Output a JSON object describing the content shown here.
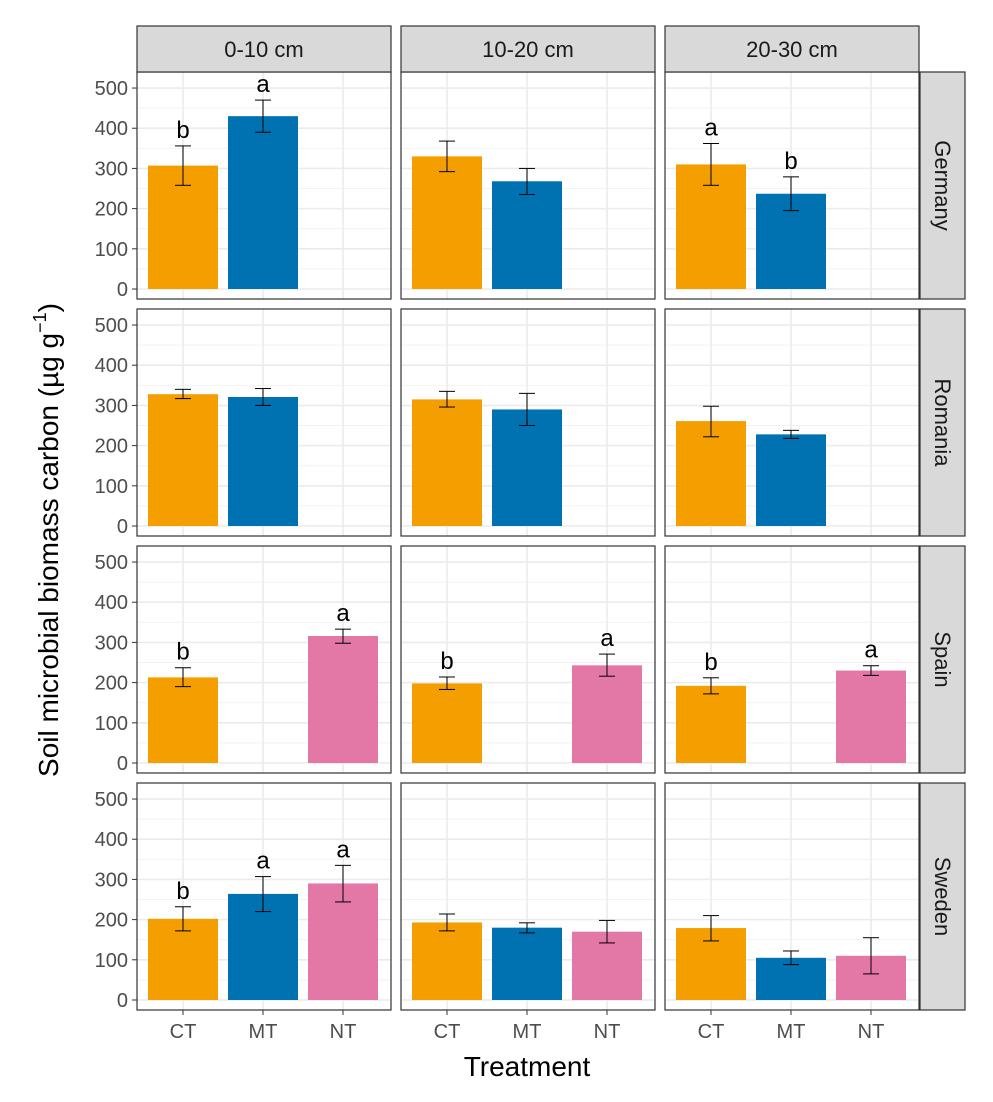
{
  "chart_data": {
    "type": "bar",
    "xlabel": "Treatment",
    "ylabel": "Soil microbial biomass carbon (µg g",
    "ylabel_sup": "−1",
    "ylabel_close": ")",
    "ylim": [
      0,
      520
    ],
    "yticks": [
      0,
      100,
      200,
      300,
      400,
      500
    ],
    "categories": [
      "CT",
      "MT",
      "NT"
    ],
    "colors": {
      "CT": "#f59e00",
      "MT": "#0072b2",
      "NT": "#e377a6"
    },
    "depths": [
      "0-10 cm",
      "10-20 cm",
      "20-30 cm"
    ],
    "countries": [
      "Germany",
      "Romania",
      "Spain",
      "Sweden"
    ],
    "panels": [
      {
        "country": "Germany",
        "depth": "0-10 cm",
        "bars": [
          {
            "treatment": "CT",
            "value": 307,
            "lo": 258,
            "hi": 356,
            "label": "b"
          },
          {
            "treatment": "MT",
            "value": 430,
            "lo": 390,
            "hi": 470,
            "label": "a"
          }
        ]
      },
      {
        "country": "Germany",
        "depth": "10-20 cm",
        "bars": [
          {
            "treatment": "CT",
            "value": 330,
            "lo": 292,
            "hi": 368
          },
          {
            "treatment": "MT",
            "value": 268,
            "lo": 235,
            "hi": 300
          }
        ]
      },
      {
        "country": "Germany",
        "depth": "20-30 cm",
        "bars": [
          {
            "treatment": "CT",
            "value": 310,
            "lo": 258,
            "hi": 362,
            "label": "a"
          },
          {
            "treatment": "MT",
            "value": 237,
            "lo": 195,
            "hi": 279,
            "label": "b"
          }
        ]
      },
      {
        "country": "Romania",
        "depth": "0-10 cm",
        "bars": [
          {
            "treatment": "CT",
            "value": 328,
            "lo": 317,
            "hi": 340
          },
          {
            "treatment": "MT",
            "value": 321,
            "lo": 300,
            "hi": 342
          }
        ]
      },
      {
        "country": "Romania",
        "depth": "10-20 cm",
        "bars": [
          {
            "treatment": "CT",
            "value": 315,
            "lo": 296,
            "hi": 335
          },
          {
            "treatment": "MT",
            "value": 290,
            "lo": 250,
            "hi": 330
          }
        ]
      },
      {
        "country": "Romania",
        "depth": "20-30 cm",
        "bars": [
          {
            "treatment": "CT",
            "value": 261,
            "lo": 222,
            "hi": 298
          },
          {
            "treatment": "MT",
            "value": 228,
            "lo": 218,
            "hi": 238
          }
        ]
      },
      {
        "country": "Spain",
        "depth": "0-10 cm",
        "bars": [
          {
            "treatment": "CT",
            "value": 213,
            "lo": 190,
            "hi": 237,
            "label": "b"
          },
          {
            "treatment": "NT",
            "value": 316,
            "lo": 298,
            "hi": 333,
            "label": "a"
          }
        ]
      },
      {
        "country": "Spain",
        "depth": "10-20 cm",
        "bars": [
          {
            "treatment": "CT",
            "value": 198,
            "lo": 183,
            "hi": 214,
            "label": "b"
          },
          {
            "treatment": "NT",
            "value": 243,
            "lo": 216,
            "hi": 271,
            "label": "a"
          }
        ]
      },
      {
        "country": "Spain",
        "depth": "20-30 cm",
        "bars": [
          {
            "treatment": "CT",
            "value": 192,
            "lo": 172,
            "hi": 212,
            "label": "b"
          },
          {
            "treatment": "NT",
            "value": 230,
            "lo": 218,
            "hi": 242,
            "label": "a"
          }
        ]
      },
      {
        "country": "Sweden",
        "depth": "0-10 cm",
        "bars": [
          {
            "treatment": "CT",
            "value": 202,
            "lo": 172,
            "hi": 232,
            "label": "b"
          },
          {
            "treatment": "MT",
            "value": 264,
            "lo": 220,
            "hi": 307,
            "label": "a"
          },
          {
            "treatment": "NT",
            "value": 290,
            "lo": 244,
            "hi": 335,
            "label": "a"
          }
        ]
      },
      {
        "country": "Sweden",
        "depth": "10-20 cm",
        "bars": [
          {
            "treatment": "CT",
            "value": 193,
            "lo": 172,
            "hi": 214
          },
          {
            "treatment": "MT",
            "value": 180,
            "lo": 167,
            "hi": 192
          },
          {
            "treatment": "NT",
            "value": 170,
            "lo": 142,
            "hi": 198
          }
        ]
      },
      {
        "country": "Sweden",
        "depth": "20-30 cm",
        "bars": [
          {
            "treatment": "CT",
            "value": 179,
            "lo": 147,
            "hi": 210
          },
          {
            "treatment": "MT",
            "value": 105,
            "lo": 88,
            "hi": 122
          },
          {
            "treatment": "NT",
            "value": 110,
            "lo": 65,
            "hi": 155
          }
        ]
      }
    ]
  }
}
